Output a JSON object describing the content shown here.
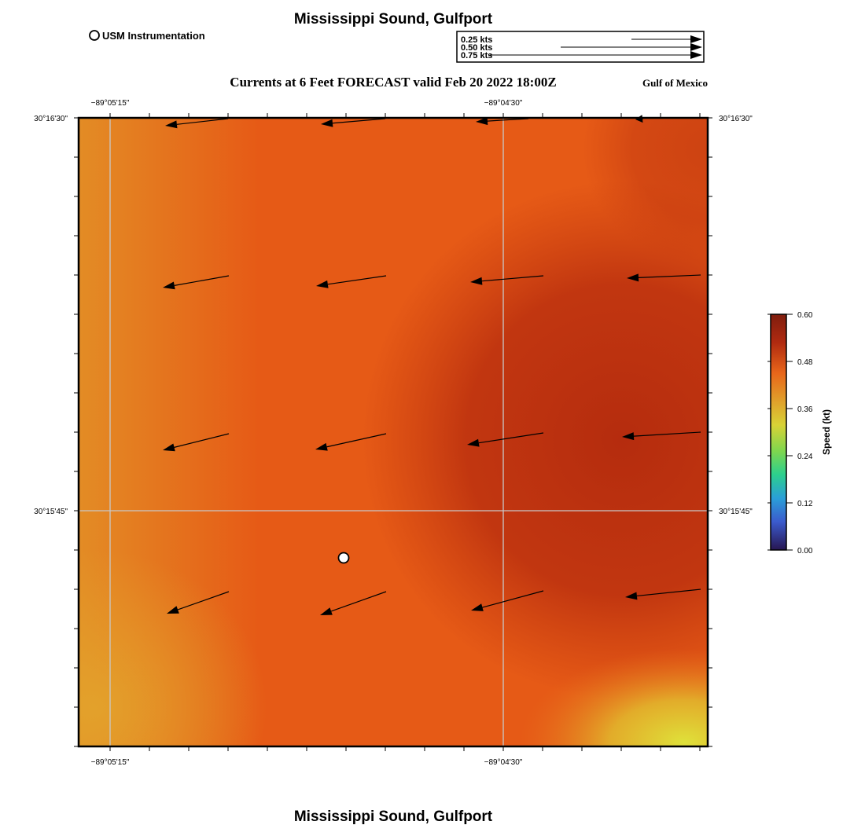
{
  "title": "Mississippi Sound, Gulfport",
  "footer_title": "Mississippi Sound, Gulfport",
  "subtitle": "Currents at 6 Feet FORECAST valid Feb 20 2022 18:00Z",
  "region_label": "Gulf of Mexico",
  "legend": {
    "station_label": "USM Instrumentation",
    "scale_arrows": [
      {
        "label": "0.25 kts",
        "speed": 0.25
      },
      {
        "label": "0.50 kts",
        "speed": 0.5
      },
      {
        "label": "0.75 kts",
        "speed": 0.75
      }
    ]
  },
  "axes": {
    "top_ticks": [
      "−89°05'15\"",
      "−89°04'30\""
    ],
    "bottom_ticks": [
      "−89°05'15\"",
      "−89°04'30\""
    ],
    "left_ticks": [
      "30°16'30\"",
      "30°15'45\""
    ],
    "right_ticks": [
      "30°16'30\"",
      "30°15'45\""
    ]
  },
  "colorbar": {
    "label": "Speed (kt)",
    "ticks": [
      "0.60",
      "0.48",
      "0.36",
      "0.24",
      "0.12",
      "0.00"
    ],
    "colors": [
      "#7f1d0e",
      "#c13212",
      "#ea6418",
      "#dfa02a",
      "#d7cf35",
      "#8fd94a",
      "#2fcf8b",
      "#2aa0d6",
      "#3f5ed0",
      "#2a1a5e"
    ]
  },
  "field_colors": {
    "base": "#e65a16",
    "west": "#e28a24",
    "east_dark": "#b9300f",
    "southeast_yellow": "#dcd735"
  },
  "station": {
    "name": "USM Instrumentation"
  }
}
